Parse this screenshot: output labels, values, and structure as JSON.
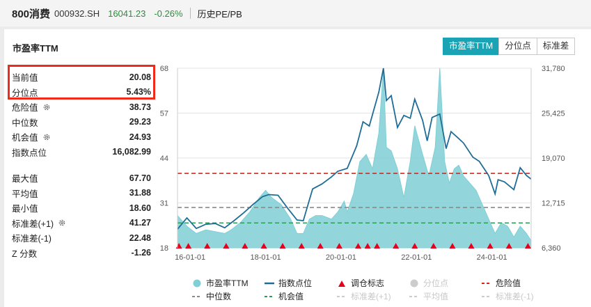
{
  "header": {
    "name": "800消费",
    "code": "000932.SH",
    "price": "16041.23",
    "change": "-0.26%",
    "subtitle": "历史PE/PB"
  },
  "panel": {
    "title": "市盈率TTM",
    "tabs": [
      {
        "label": "市盈率TTM",
        "active": true
      },
      {
        "label": "分位点",
        "active": false
      },
      {
        "label": "标准差",
        "active": false
      }
    ]
  },
  "stats": {
    "group1": [
      {
        "label": "当前值",
        "value": "20.08",
        "gear": false
      },
      {
        "label": "分位点",
        "value": "5.43%",
        "gear": false
      },
      {
        "label": "危险值",
        "value": "38.73",
        "gear": true
      },
      {
        "label": "中位数",
        "value": "29.23",
        "gear": false
      },
      {
        "label": "机会值",
        "value": "24.93",
        "gear": true
      },
      {
        "label": "指数点位",
        "value": "16,082.99",
        "gear": false
      }
    ],
    "group2": [
      {
        "label": "最大值",
        "value": "67.70",
        "gear": false
      },
      {
        "label": "平均值",
        "value": "31.88",
        "gear": false
      },
      {
        "label": "最小值",
        "value": "18.60",
        "gear": false
      },
      {
        "label": "标准差(+1)",
        "value": "41.27",
        "gear": true
      },
      {
        "label": "标准差(-1)",
        "value": "22.48",
        "gear": false
      },
      {
        "label": "Z 分数",
        "value": "-1.26",
        "gear": false
      }
    ]
  },
  "legend": {
    "row1": [
      {
        "label": "市盈率TTM",
        "marker": "dot",
        "color": "#7fcfd6",
        "enabled": true
      },
      {
        "label": "指数点位",
        "marker": "line",
        "color": "#1f6d96",
        "enabled": true
      },
      {
        "label": "调仓标志",
        "marker": "triangle",
        "color": "#e4001b",
        "enabled": true
      },
      {
        "label": "分位点",
        "marker": "dot",
        "color": "#cccccc",
        "enabled": false
      },
      {
        "label": "危险值",
        "marker": "dash",
        "color": "#d9261c",
        "enabled": true
      }
    ],
    "row2": [
      {
        "label": "中位数",
        "marker": "dash",
        "color": "#8a8a8a",
        "enabled": true
      },
      {
        "label": "机会值",
        "marker": "dash",
        "color": "#2a9d55",
        "enabled": true
      },
      {
        "label": "标准差(+1)",
        "marker": "dash",
        "color": "#cccccc",
        "enabled": false
      },
      {
        "label": "平均值",
        "marker": "dash",
        "color": "#cccccc",
        "enabled": false
      },
      {
        "label": "标准差(-1)",
        "marker": "dash",
        "color": "#cccccc",
        "enabled": false
      }
    ]
  },
  "colors": {
    "area": "#7fcfd6",
    "index_line": "#1f6d96",
    "danger": "#d9261c",
    "median": "#8a8a8a",
    "opportunity": "#2a9d55",
    "rebalance": "#e4001b",
    "accent": "#1aa3b5"
  },
  "chart_data": {
    "type": "area",
    "x_ticks": [
      "16-01-01",
      "18-01-01",
      "20-01-01",
      "22-01-01",
      "24-01-01"
    ],
    "x_range": [
      "2015-09-01",
      "2025-01-15"
    ],
    "y_left_ticks": [
      "18",
      "31",
      "44",
      "57",
      "68"
    ],
    "y_left_range": [
      18,
      68
    ],
    "y_right_ticks": [
      "6,360",
      "12,715",
      "19,070",
      "25,425",
      "31,780"
    ],
    "y_right_range": [
      6360,
      31780
    ],
    "reference_lines": {
      "danger": 38.73,
      "median": 29.23,
      "opportunity": 24.93
    },
    "series": [
      {
        "name": "市盈率TTM",
        "axis": "left",
        "points": [
          [
            "2015-09-01",
            27
          ],
          [
            "2015-12-01",
            24
          ],
          [
            "2016-03-01",
            22
          ],
          [
            "2016-06-01",
            23
          ],
          [
            "2016-09-01",
            22.5
          ],
          [
            "2016-12-01",
            22
          ],
          [
            "2017-02-01",
            23
          ],
          [
            "2017-05-01",
            25
          ],
          [
            "2017-08-01",
            28
          ],
          [
            "2017-11-01",
            32
          ],
          [
            "2018-01-01",
            34
          ],
          [
            "2018-03-01",
            32
          ],
          [
            "2018-06-01",
            30
          ],
          [
            "2018-09-01",
            26
          ],
          [
            "2018-11-01",
            22
          ],
          [
            "2019-01-01",
            22
          ],
          [
            "2019-03-01",
            26
          ],
          [
            "2019-05-01",
            27
          ],
          [
            "2019-07-01",
            27
          ],
          [
            "2019-10-01",
            26
          ],
          [
            "2019-12-01",
            28
          ],
          [
            "2020-02-01",
            31
          ],
          [
            "2020-03-01",
            28
          ],
          [
            "2020-05-01",
            33
          ],
          [
            "2020-07-01",
            42
          ],
          [
            "2020-09-01",
            44
          ],
          [
            "2020-11-01",
            40
          ],
          [
            "2021-01-01",
            50
          ],
          [
            "2021-02-15",
            68
          ],
          [
            "2021-03-15",
            46
          ],
          [
            "2021-05-01",
            45
          ],
          [
            "2021-07-01",
            40
          ],
          [
            "2021-09-01",
            32
          ],
          [
            "2021-11-01",
            42
          ],
          [
            "2021-12-15",
            52
          ],
          [
            "2022-03-01",
            44
          ],
          [
            "2022-05-01",
            38
          ],
          [
            "2022-07-01",
            46
          ],
          [
            "2022-08-15",
            68
          ],
          [
            "2022-10-01",
            42
          ],
          [
            "2022-11-15",
            36
          ],
          [
            "2023-01-01",
            40
          ],
          [
            "2023-02-15",
            41
          ],
          [
            "2023-04-01",
            38
          ],
          [
            "2023-06-01",
            36
          ],
          [
            "2023-08-01",
            34
          ],
          [
            "2023-10-01",
            30
          ],
          [
            "2023-12-01",
            26
          ],
          [
            "2024-02-01",
            22
          ],
          [
            "2024-04-01",
            25
          ],
          [
            "2024-06-01",
            24
          ],
          [
            "2024-08-01",
            21
          ],
          [
            "2024-10-01",
            24
          ],
          [
            "2024-12-01",
            22
          ],
          [
            "2025-01-15",
            20
          ]
        ]
      },
      {
        "name": "指数点位",
        "axis": "right",
        "points": [
          [
            "2015-09-01",
            9000
          ],
          [
            "2015-12-01",
            10600
          ],
          [
            "2016-03-01",
            9100
          ],
          [
            "2016-06-01",
            9700
          ],
          [
            "2016-09-01",
            9800
          ],
          [
            "2016-12-01",
            9200
          ],
          [
            "2017-03-01",
            10200
          ],
          [
            "2017-06-01",
            11300
          ],
          [
            "2017-09-01",
            12500
          ],
          [
            "2017-12-01",
            13600
          ],
          [
            "2018-02-01",
            13900
          ],
          [
            "2018-05-01",
            13800
          ],
          [
            "2018-08-01",
            12000
          ],
          [
            "2018-11-01",
            10300
          ],
          [
            "2019-01-01",
            10200
          ],
          [
            "2019-04-01",
            14700
          ],
          [
            "2019-07-01",
            15400
          ],
          [
            "2019-10-01",
            16400
          ],
          [
            "2019-12-01",
            17200
          ],
          [
            "2020-03-01",
            17600
          ],
          [
            "2020-06-01",
            20800
          ],
          [
            "2020-08-01",
            24200
          ],
          [
            "2020-10-01",
            23600
          ],
          [
            "2021-01-01",
            28400
          ],
          [
            "2021-02-15",
            31780
          ],
          [
            "2021-03-15",
            27200
          ],
          [
            "2021-05-01",
            27900
          ],
          [
            "2021-07-01",
            23400
          ],
          [
            "2021-09-01",
            25100
          ],
          [
            "2021-11-01",
            24700
          ],
          [
            "2021-12-15",
            27400
          ],
          [
            "2022-03-01",
            24400
          ],
          [
            "2022-04-15",
            21500
          ],
          [
            "2022-06-01",
            24800
          ],
          [
            "2022-08-15",
            25300
          ],
          [
            "2022-10-15",
            20400
          ],
          [
            "2022-12-01",
            22800
          ],
          [
            "2023-02-01",
            22000
          ],
          [
            "2023-04-01",
            21200
          ],
          [
            "2023-07-01",
            19200
          ],
          [
            "2023-09-01",
            18600
          ],
          [
            "2023-12-01",
            16600
          ],
          [
            "2024-02-01",
            14000
          ],
          [
            "2024-03-01",
            16000
          ],
          [
            "2024-05-01",
            15700
          ],
          [
            "2024-08-01",
            14600
          ],
          [
            "2024-10-01",
            17700
          ],
          [
            "2024-12-01",
            16600
          ],
          [
            "2025-01-15",
            16083
          ]
        ]
      },
      {
        "name": "调仓标志",
        "dates": [
          "2015-09-15",
          "2015-12-15",
          "2016-06-15",
          "2016-12-15",
          "2017-06-15",
          "2017-12-15",
          "2018-06-15",
          "2018-12-15",
          "2019-06-15",
          "2019-12-15",
          "2020-06-15",
          "2020-09-15",
          "2020-12-15",
          "2021-06-15",
          "2021-12-15",
          "2022-06-15",
          "2022-12-15",
          "2023-06-15",
          "2023-12-15",
          "2024-06-15",
          "2024-12-15"
        ]
      }
    ]
  }
}
